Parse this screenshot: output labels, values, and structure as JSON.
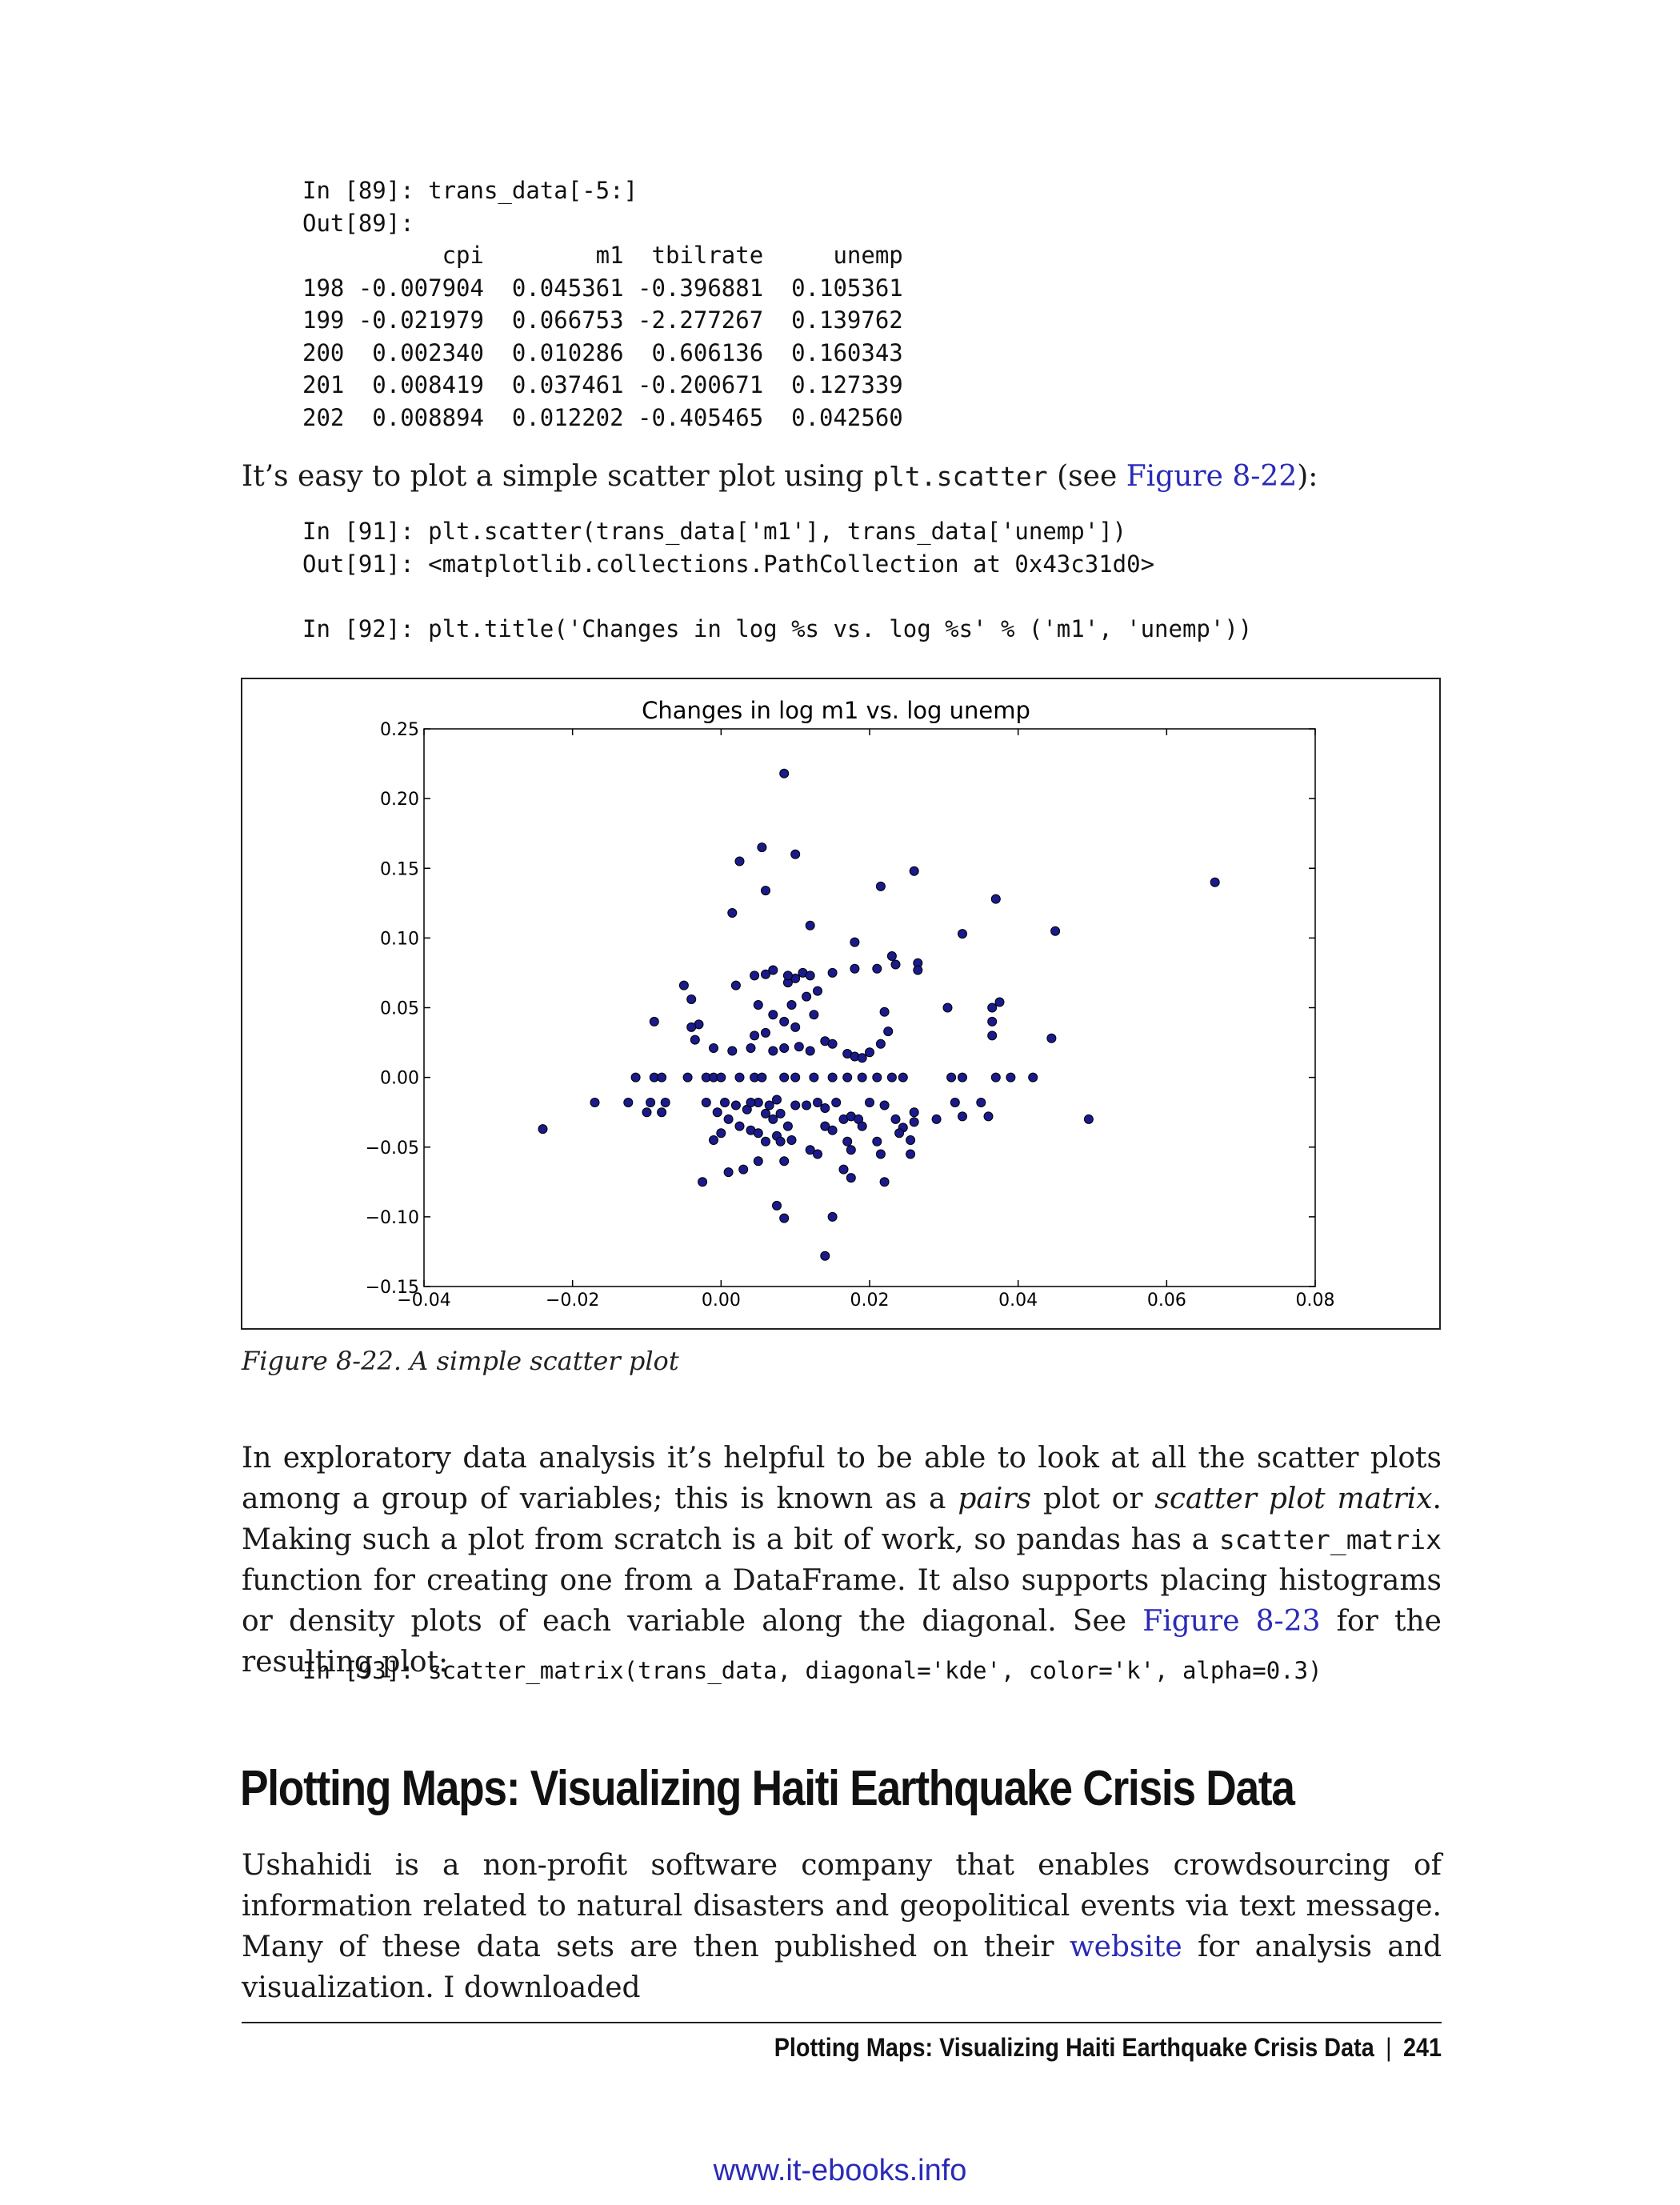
{
  "code_block_1": [
    "In [89]: trans_data[-5:]",
    "Out[89]:",
    "          cpi        m1  tbilrate     unemp",
    "198 -0.007904  0.045361 -0.396881  0.105361",
    "199 -0.021979  0.066753 -2.277267  0.139762",
    "200  0.002340  0.010286  0.606136  0.160343",
    "201  0.008419  0.037461 -0.200671  0.127339",
    "202  0.008894  0.012202 -0.405465  0.042560"
  ],
  "para_scatter": {
    "before": "It’s easy to plot a simple scatter plot using ",
    "code": "plt.scatter",
    "middle": " (see ",
    "link": "Figure 8-22",
    "after": "):"
  },
  "code_block_2": [
    "In [91]: plt.scatter(trans_data['m1'], trans_data['unemp'])",
    "Out[91]: <matplotlib.collections.PathCollection at 0x43c31d0>",
    "",
    "In [92]: plt.title('Changes in log %s vs. log %s' % ('m1', 'unemp'))"
  ],
  "caption": "Figure 8-22. A simple scatter plot",
  "para_pairs": {
    "t1": "In exploratory data analysis it’s helpful to be able to look at all the scatter plots among a group of variables; this is known as a ",
    "em1": "pairs",
    "t2": " plot or ",
    "em2": "scatter plot matrix",
    "t3": ". Making such a plot from scratch is a bit of work, so pandas has a ",
    "code": "scatter_matrix",
    "t4": " function for creating one from a DataFrame. It also supports placing histograms or density plots of each variable along the diagonal. See ",
    "link": "Figure 8-23",
    "t5": " for the resulting plot:"
  },
  "code_block_3": [
    "In [93]: scatter_matrix(trans_data, diagonal='kde', color='k', alpha=0.3)"
  ],
  "heading": "Plotting Maps: Visualizing Haiti Earthquake Crisis Data",
  "para_ushahidi": {
    "t1": "Ushahidi is a non-profit software company that enables crowdsourcing of information related to natural disasters and geopolitical events via text message. Many of these data sets are then published on their ",
    "link": "website",
    "t2": " for analysis and visualization. I downloaded"
  },
  "footer": {
    "title": "Plotting Maps: Visualizing Haiti Earthquake Crisis Data",
    "separator": "|",
    "page": "241"
  },
  "watermark": "www.it-ebooks.info",
  "colors": {
    "link": "#2a2ab8",
    "marker": "#1a1a8c"
  },
  "chart_data": {
    "type": "scatter",
    "title": "Changes in log m1 vs. log unemp",
    "xlabel": "",
    "ylabel": "",
    "xlim": [
      -0.04,
      0.08
    ],
    "ylim": [
      -0.15,
      0.25
    ],
    "xticks": [
      "−0.04",
      "−0.02",
      "0.00",
      "0.02",
      "0.04",
      "0.06",
      "0.08"
    ],
    "yticks": [
      "−0.15",
      "−0.10",
      "−0.05",
      "0.00",
      "0.05",
      "0.10",
      "0.15",
      "0.20",
      "0.25"
    ],
    "grid": false,
    "points": [
      [
        0.0085,
        0.218
      ],
      [
        0.0055,
        0.165
      ],
      [
        0.0025,
        0.155
      ],
      [
        0.01,
        0.16
      ],
      [
        0.006,
        0.134
      ],
      [
        0.0015,
        0.118
      ],
      [
        0.0215,
        0.137
      ],
      [
        0.026,
        0.148
      ],
      [
        0.037,
        0.128
      ],
      [
        0.0665,
        0.14
      ],
      [
        0.045,
        0.105
      ],
      [
        0.0325,
        0.103
      ],
      [
        0.012,
        0.109
      ],
      [
        0.018,
        0.097
      ],
      [
        0.023,
        0.087
      ],
      [
        0.0235,
        0.081
      ],
      [
        0.0265,
        0.082
      ],
      [
        0.0265,
        0.077
      ],
      [
        0.021,
        0.078
      ],
      [
        0.018,
        0.078
      ],
      [
        0.015,
        0.075
      ],
      [
        0.011,
        0.075
      ],
      [
        0.01,
        0.071
      ],
      [
        0.009,
        0.068
      ],
      [
        0.007,
        0.077
      ],
      [
        0.009,
        0.073
      ],
      [
        0.012,
        0.073
      ],
      [
        0.006,
        0.074
      ],
      [
        0.0045,
        0.073
      ],
      [
        0.002,
        0.066
      ],
      [
        -0.005,
        0.066
      ],
      [
        -0.004,
        0.056
      ],
      [
        -0.003,
        0.038
      ],
      [
        -0.009,
        0.04
      ],
      [
        -0.004,
        0.036
      ],
      [
        -0.0035,
        0.027
      ],
      [
        -0.001,
        0.021
      ],
      [
        0.0015,
        0.019
      ],
      [
        0.005,
        0.052
      ],
      [
        0.007,
        0.045
      ],
      [
        0.0095,
        0.052
      ],
      [
        0.0115,
        0.058
      ],
      [
        0.0125,
        0.045
      ],
      [
        0.013,
        0.062
      ],
      [
        0.0085,
        0.04
      ],
      [
        0.01,
        0.036
      ],
      [
        0.006,
        0.032
      ],
      [
        0.0045,
        0.03
      ],
      [
        0.004,
        0.021
      ],
      [
        0.007,
        0.019
      ],
      [
        0.0085,
        0.021
      ],
      [
        0.0105,
        0.022
      ],
      [
        0.012,
        0.019
      ],
      [
        0.014,
        0.026
      ],
      [
        0.015,
        0.024
      ],
      [
        0.017,
        0.017
      ],
      [
        0.018,
        0.015
      ],
      [
        0.02,
        0.018
      ],
      [
        0.019,
        0.014
      ],
      [
        0.0215,
        0.024
      ],
      [
        0.0225,
        0.033
      ],
      [
        0.022,
        0.047
      ],
      [
        0.0305,
        0.05
      ],
      [
        0.0365,
        0.05
      ],
      [
        0.0375,
        0.054
      ],
      [
        0.0365,
        0.04
      ],
      [
        0.0365,
        0.03
      ],
      [
        0.0445,
        0.028
      ],
      [
        -0.0115,
        0.0
      ],
      [
        -0.009,
        0.0
      ],
      [
        -0.008,
        0.0
      ],
      [
        -0.0045,
        0.0
      ],
      [
        -0.002,
        0.0
      ],
      [
        -0.001,
        0.0
      ],
      [
        0.0,
        0.0
      ],
      [
        0.0025,
        0.0
      ],
      [
        0.0045,
        0.0
      ],
      [
        0.0055,
        0.0
      ],
      [
        0.0085,
        0.0
      ],
      [
        0.01,
        0.0
      ],
      [
        0.0125,
        0.0
      ],
      [
        0.015,
        0.0
      ],
      [
        0.017,
        0.0
      ],
      [
        0.019,
        0.0
      ],
      [
        0.021,
        0.0
      ],
      [
        0.023,
        0.0
      ],
      [
        0.0245,
        0.0
      ],
      [
        0.031,
        0.0
      ],
      [
        0.0325,
        0.0
      ],
      [
        0.037,
        0.0
      ],
      [
        0.039,
        0.0
      ],
      [
        0.042,
        0.0
      ],
      [
        -0.017,
        -0.018
      ],
      [
        -0.0125,
        -0.018
      ],
      [
        -0.0095,
        -0.018
      ],
      [
        -0.0075,
        -0.018
      ],
      [
        -0.01,
        -0.025
      ],
      [
        -0.008,
        -0.025
      ],
      [
        -0.024,
        -0.037
      ],
      [
        -0.002,
        -0.018
      ],
      [
        -0.0005,
        -0.025
      ],
      [
        0.0005,
        -0.018
      ],
      [
        0.002,
        -0.02
      ],
      [
        0.0035,
        -0.023
      ],
      [
        0.005,
        -0.018
      ],
      [
        0.0065,
        -0.02
      ],
      [
        0.0075,
        -0.016
      ],
      [
        0.008,
        -0.026
      ],
      [
        0.006,
        -0.026
      ],
      [
        0.001,
        -0.03
      ],
      [
        0.0025,
        -0.035
      ],
      [
        0.004,
        -0.038
      ],
      [
        0.0,
        -0.04
      ],
      [
        -0.001,
        -0.045
      ],
      [
        0.005,
        -0.04
      ],
      [
        0.0075,
        -0.042
      ],
      [
        0.009,
        -0.035
      ],
      [
        0.006,
        -0.046
      ],
      [
        0.008,
        -0.046
      ],
      [
        0.01,
        -0.02
      ],
      [
        0.0115,
        -0.02
      ],
      [
        0.013,
        -0.018
      ],
      [
        0.014,
        -0.022
      ],
      [
        0.0155,
        -0.018
      ],
      [
        0.014,
        -0.035
      ],
      [
        0.015,
        -0.038
      ],
      [
        0.0165,
        -0.03
      ],
      [
        0.0175,
        -0.028
      ],
      [
        0.0185,
        -0.03
      ],
      [
        0.019,
        -0.035
      ],
      [
        0.017,
        -0.046
      ],
      [
        0.0175,
        -0.052
      ],
      [
        0.02,
        -0.018
      ],
      [
        0.022,
        -0.02
      ],
      [
        0.0235,
        -0.03
      ],
      [
        0.0245,
        -0.036
      ],
      [
        0.0255,
        -0.045
      ],
      [
        0.026,
        -0.025
      ],
      [
        0.026,
        -0.032
      ],
      [
        0.024,
        -0.04
      ],
      [
        0.021,
        -0.046
      ],
      [
        0.0215,
        -0.055
      ],
      [
        0.0255,
        -0.055
      ],
      [
        0.029,
        -0.03
      ],
      [
        0.0315,
        -0.018
      ],
      [
        0.0325,
        -0.028
      ],
      [
        0.035,
        -0.018
      ],
      [
        0.036,
        -0.028
      ],
      [
        0.0495,
        -0.03
      ],
      [
        0.012,
        -0.052
      ],
      [
        0.013,
        -0.055
      ],
      [
        0.0085,
        -0.06
      ],
      [
        0.005,
        -0.06
      ],
      [
        0.003,
        -0.066
      ],
      [
        0.001,
        -0.068
      ],
      [
        -0.0025,
        -0.075
      ],
      [
        0.0165,
        -0.066
      ],
      [
        0.0175,
        -0.072
      ],
      [
        0.022,
        -0.075
      ],
      [
        0.0095,
        -0.045
      ],
      [
        0.0075,
        -0.092
      ],
      [
        0.0085,
        -0.101
      ],
      [
        0.015,
        -0.1
      ],
      [
        0.014,
        -0.128
      ],
      [
        0.004,
        -0.018
      ],
      [
        0.007,
        -0.03
      ]
    ]
  }
}
